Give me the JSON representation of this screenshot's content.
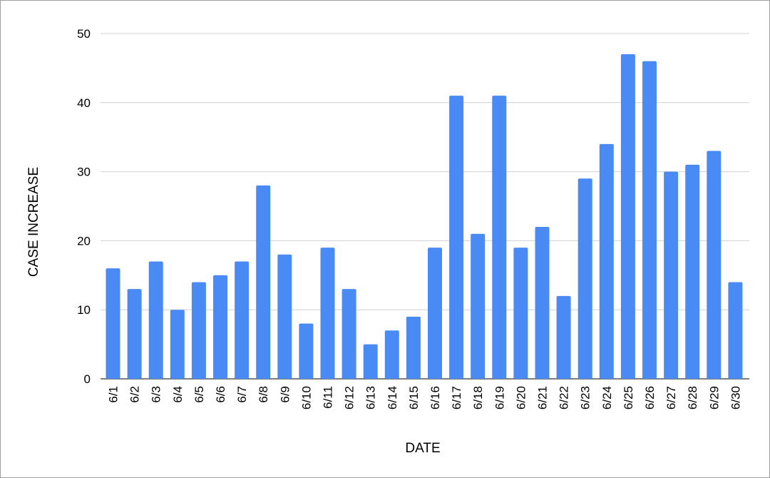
{
  "chart_data": {
    "type": "bar",
    "title": "",
    "xlabel": "DATE",
    "ylabel": "CASE INCREASE",
    "ylim": [
      0,
      50
    ],
    "yticks": [
      0,
      10,
      20,
      30,
      40,
      50
    ],
    "grid": true,
    "legend": "none",
    "bar_color": "#4a8af4",
    "categories": [
      "6/1",
      "6/2",
      "6/3",
      "6/4",
      "6/5",
      "6/6",
      "6/7",
      "6/8",
      "6/9",
      "6/10",
      "6/11",
      "6/12",
      "6/13",
      "6/14",
      "6/15",
      "6/16",
      "6/17",
      "6/18",
      "6/19",
      "6/20",
      "6/21",
      "6/22",
      "6/23",
      "6/24",
      "6/25",
      "6/26",
      "6/27",
      "6/28",
      "6/29",
      "6/30"
    ],
    "values": [
      16,
      13,
      17,
      10,
      14,
      15,
      17,
      28,
      18,
      8,
      19,
      13,
      5,
      7,
      9,
      19,
      41,
      21,
      41,
      19,
      22,
      12,
      29,
      34,
      47,
      46,
      30,
      31,
      33,
      14
    ]
  }
}
